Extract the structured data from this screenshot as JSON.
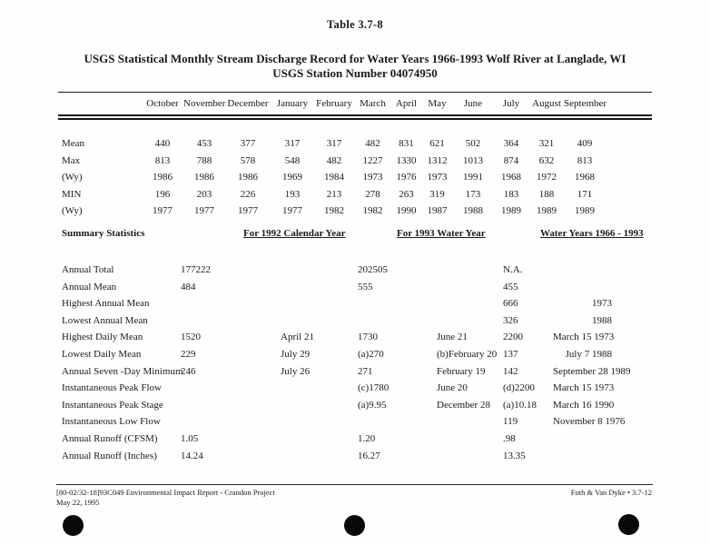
{
  "page": {
    "table_label": "Table 3.7-8",
    "title_line1": "USGS Statistical Monthly Stream Discharge Record for Water Years 1966-1993 Wolf River at Langlade, WI",
    "title_line2": "USGS Station Number 04074950"
  },
  "monthly_table": {
    "columns": [
      "October",
      "November",
      "December",
      "January",
      "February",
      "March",
      "April",
      "May",
      "June",
      "July",
      "August",
      "September"
    ],
    "rows": [
      {
        "label": "Mean",
        "values": [
          "440",
          "453",
          "377",
          "317",
          "317",
          "482",
          "831",
          "621",
          "502",
          "364",
          "321",
          "409"
        ]
      },
      {
        "label": "Max",
        "values": [
          "813",
          "788",
          "578",
          "548",
          "482",
          "1227",
          "1330",
          "1312",
          "1013",
          "874",
          "632",
          "813"
        ]
      },
      {
        "label": "(Wy)",
        "values": [
          "1986",
          "1986",
          "1986",
          "1969",
          "1984",
          "1973",
          "1976",
          "1973",
          "1991",
          "1968",
          "1972",
          "1968"
        ]
      },
      {
        "label": "MIN",
        "values": [
          "196",
          "203",
          "226",
          "193",
          "213",
          "278",
          "263",
          "319",
          "173",
          "183",
          "188",
          "171"
        ]
      },
      {
        "label": "(Wy)",
        "values": [
          "1977",
          "1977",
          "1977",
          "1977",
          "1982",
          "1982",
          "1990",
          "1987",
          "1988",
          "1989",
          "1989",
          "1989"
        ]
      }
    ]
  },
  "summary": {
    "heading": "Summary Statistics",
    "col_headers": [
      "For 1992 Calendar Year",
      "For 1993 Water Year",
      "Water Years 1966 - 1993"
    ],
    "rows": [
      {
        "label": "Annual Total",
        "v1": "177222",
        "d1": "",
        "v2": "202505",
        "d2": "",
        "v3": "N.A.",
        "d3": ""
      },
      {
        "label": "Annual Mean",
        "v1": "484",
        "d1": "",
        "v2": "555",
        "d2": "",
        "v3": "455",
        "d3": ""
      },
      {
        "label": "Highest Annual Mean",
        "v1": "",
        "d1": "",
        "v2": "",
        "d2": "",
        "v3": "666",
        "d3": "1973"
      },
      {
        "label": "Lowest Annual Mean",
        "v1": "",
        "d1": "",
        "v2": "",
        "d2": "",
        "v3": "326",
        "d3": "1988"
      },
      {
        "label": "Highest Daily Mean",
        "v1": "1520",
        "d1": "April 21",
        "v2": "1730",
        "d2": "June 21",
        "v3": "2200",
        "d3": "March 15 1973"
      },
      {
        "label": "Lowest Daily Mean",
        "v1": "229",
        "d1": "July 29",
        "v2": "(a)270",
        "d2": "(b)February 20",
        "v3": "137",
        "d3": "July 7 1988"
      },
      {
        "label": "Annual Seven -Day Minimum",
        "v1": "246",
        "d1": "July 26",
        "v2": "271",
        "d2": "February 19",
        "v3": "142",
        "d3": "September 28 1989"
      },
      {
        "label": "Instantaneous Peak Flow",
        "v1": "",
        "d1": "",
        "v2": "(c)1780",
        "d2": "June 20",
        "v3": "(d)2200",
        "d3": "March 15 1973"
      },
      {
        "label": "Instantaneous Peak Stage",
        "v1": "",
        "d1": "",
        "v2": "(a)9.95",
        "d2": "December 28",
        "v3": "(a)10.18",
        "d3": "March 16 1990"
      },
      {
        "label": "Instantaneous Low Flow",
        "v1": "",
        "d1": "",
        "v2": "",
        "d2": "",
        "v3": "119",
        "d3": "November 8 1976"
      },
      {
        "label": "Annual Runoff (CFSM)",
        "v1": "1.05",
        "d1": "",
        "v2": "1.20",
        "d2": "",
        "v3": ".98",
        "d3": ""
      },
      {
        "label": "Annual Runoff (Inches)",
        "v1": "14.24",
        "d1": "",
        "v2": "16.27",
        "d2": "",
        "v3": "13.35",
        "d3": ""
      }
    ]
  },
  "footer": {
    "left_line1": "[80-02/32-18]93C049  Environmental Impact Report - Crandon Project",
    "left_line2": "May 22, 1995",
    "right_text": "Foth & Van Dyke  •  3.7-12"
  }
}
